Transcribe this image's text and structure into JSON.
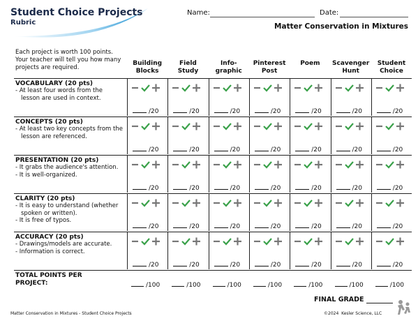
{
  "header": {
    "title": "Student Choice Projects",
    "subtitle": "Rubric",
    "name_label": "Name:",
    "date_label": "Date:",
    "topic": "Matter Conservation in Mixtures"
  },
  "intro": "Each project is worth 100 points. Your teacher will tell you how many projects are required.",
  "columns": [
    "Building\nBlocks",
    "Field\nStudy",
    "Info-\ngraphic",
    "Pinterest\nPost",
    "Poem",
    "Scavenger\nHunt",
    "Student\nChoice"
  ],
  "criteria": [
    {
      "title": "VOCABULARY (20 pts)",
      "items": [
        "- At least four words from the lesson are used in context."
      ],
      "score": "/20"
    },
    {
      "title": "CONCEPTS (20 pts)",
      "items": [
        "- At least two key concepts from the lesson are referenced."
      ],
      "score": "/20"
    },
    {
      "title": "PRESENTATION (20 pts)",
      "items": [
        "-  It grabs the audience's attention.",
        "-  It is well-organized."
      ],
      "score": "/20"
    },
    {
      "title": "CLARITY (20 pts)",
      "items": [
        "- It is easy to understand (whether spoken or written).",
        "- It is free of typos."
      ],
      "score": "/20"
    },
    {
      "title": "ACCURACY (20 pts)",
      "items": [
        "- Drawings/models are accurate.",
        "- Information is correct."
      ],
      "score": "/20"
    }
  ],
  "total": {
    "label": "TOTAL POINTS PER PROJECT:",
    "score": "/100"
  },
  "final_grade": "FINAL GRADE",
  "footer": {
    "left": "Matter Conservation in Mixtures - Student Choice Projects",
    "right": "©2024  Kesler Science, LLC"
  }
}
